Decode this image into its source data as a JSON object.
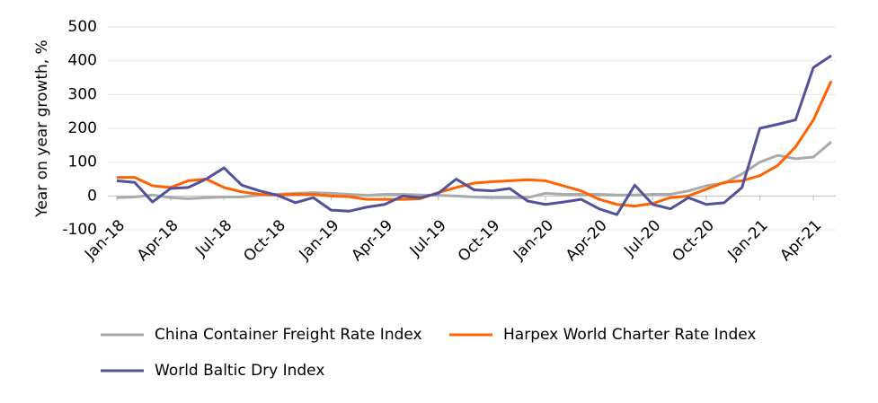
{
  "chart_data": {
    "type": "line",
    "y_label": "Year on year growth, %",
    "categories": [
      "Jan-18",
      null,
      null,
      "Apr-18",
      null,
      null,
      "Jul-18",
      null,
      null,
      "Oct-18",
      null,
      null,
      "Jan-19",
      null,
      null,
      "Apr-19",
      null,
      null,
      "Jul-19",
      null,
      null,
      "Oct-19",
      null,
      null,
      "Jan-20",
      null,
      null,
      "Apr-20",
      null,
      null,
      "Jul-20",
      null,
      null,
      "Oct-20",
      null,
      null,
      "Jan-21",
      null,
      null,
      "Apr-21",
      null
    ],
    "series": [
      {
        "name": "China Container Freight Rate Index",
        "color": "#aaaaaa",
        "values": [
          -5,
          -3,
          3,
          -5,
          -8,
          -5,
          -3,
          -3,
          3,
          5,
          8,
          10,
          8,
          5,
          2,
          5,
          5,
          3,
          2,
          0,
          -3,
          -5,
          -5,
          -5,
          8,
          5,
          5,
          5,
          3,
          3,
          5,
          5,
          15,
          30,
          38,
          65,
          100,
          120,
          110,
          115,
          160
        ]
      },
      {
        "name": "Harpex World Charter Rate Index",
        "color": "#ff6200",
        "values": [
          55,
          55,
          30,
          25,
          45,
          50,
          25,
          12,
          5,
          3,
          5,
          5,
          0,
          -2,
          -10,
          -10,
          -10,
          -8,
          10,
          25,
          38,
          42,
          45,
          48,
          45,
          30,
          15,
          -10,
          -25,
          -30,
          -22,
          -5,
          0,
          20,
          40,
          45,
          60,
          90,
          145,
          225,
          340
        ]
      },
      {
        "name": "World Baltic Dry Index",
        "color": "#525199",
        "values": [
          45,
          40,
          -18,
          22,
          25,
          50,
          83,
          32,
          15,
          2,
          -20,
          -5,
          -42,
          -45,
          -33,
          -25,
          0,
          -5,
          8,
          50,
          18,
          15,
          22,
          -15,
          -25,
          -18,
          -10,
          -38,
          -55,
          32,
          -25,
          -38,
          -5,
          -25,
          -20,
          25,
          200,
          212,
          225,
          380,
          415
        ]
      }
    ],
    "ylim": [
      -100,
      500
    ],
    "yticks": [
      -100,
      0,
      100,
      200,
      300,
      400,
      500
    ],
    "grid": true,
    "legend": "bottom"
  }
}
